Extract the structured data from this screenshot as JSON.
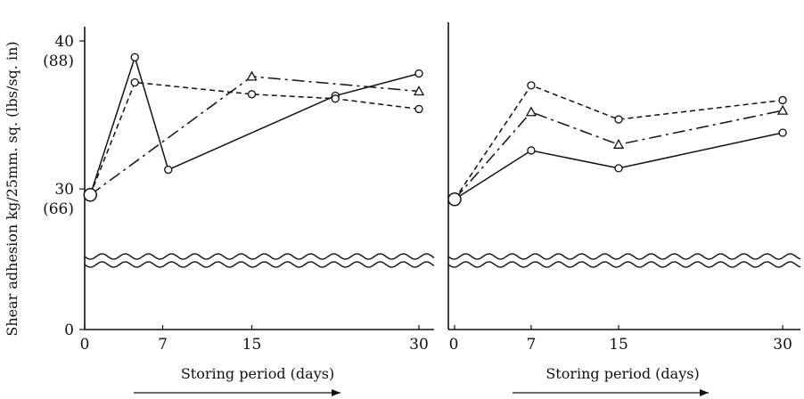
{
  "chart_data": [
    {
      "type": "line",
      "panel": "left",
      "xlabel": "Storing period (days)",
      "ylabel": "Shear adhesion kg/25mm. sq. (lbs/sq. in)",
      "xlim": [
        0,
        31
      ],
      "ylim": [
        0,
        40
      ],
      "y_break": [
        5,
        27
      ],
      "x_ticks": [
        "0",
        "7",
        "15",
        "30"
      ],
      "x_tick_values": [
        0,
        7,
        15,
        30
      ],
      "y_ticks": [
        {
          "value": 40,
          "label": "40",
          "sublabel": "(88)"
        },
        {
          "value": 30,
          "label": "30",
          "sublabel": "(66)"
        },
        {
          "value": 0,
          "label": "0",
          "sublabel": ""
        }
      ],
      "start_point": {
        "x": 0.5,
        "y": 29.6
      },
      "series": [
        {
          "style": "solid",
          "marker": "circle",
          "x": [
            0.5,
            4.5,
            7.5,
            22.5,
            30
          ],
          "y": [
            29.6,
            38.9,
            31.3,
            36.3,
            37.8
          ]
        },
        {
          "style": "dashed",
          "marker": "circle",
          "x": [
            0.5,
            4.5,
            15,
            22.5,
            30
          ],
          "y": [
            29.6,
            37.2,
            36.4,
            36.1,
            35.4
          ]
        },
        {
          "style": "dashdot",
          "marker": "triangle",
          "x": [
            0.5,
            15,
            30
          ],
          "y": [
            29.6,
            37.6,
            36.6
          ]
        }
      ]
    },
    {
      "type": "line",
      "panel": "right",
      "xlabel": "Storing period (days)",
      "xlim": [
        0,
        31
      ],
      "ylim": [
        0,
        40
      ],
      "y_break": [
        5,
        27
      ],
      "x_ticks": [
        "0",
        "7",
        "15",
        "30"
      ],
      "x_tick_values": [
        0,
        7,
        15,
        30
      ],
      "start_point": {
        "x": 0,
        "y": 29.3
      },
      "series": [
        {
          "style": "solid",
          "marker": "circle",
          "x": [
            0,
            7,
            15,
            30
          ],
          "y": [
            29.3,
            32.6,
            31.4,
            33.8
          ]
        },
        {
          "style": "dashed",
          "marker": "circle",
          "x": [
            0,
            7,
            15,
            30
          ],
          "y": [
            29.3,
            37.0,
            34.7,
            36.0
          ]
        },
        {
          "style": "dashdot",
          "marker": "triangle",
          "x": [
            0,
            7,
            15,
            30
          ],
          "y": [
            29.3,
            35.2,
            33.0,
            35.3
          ]
        }
      ]
    }
  ]
}
